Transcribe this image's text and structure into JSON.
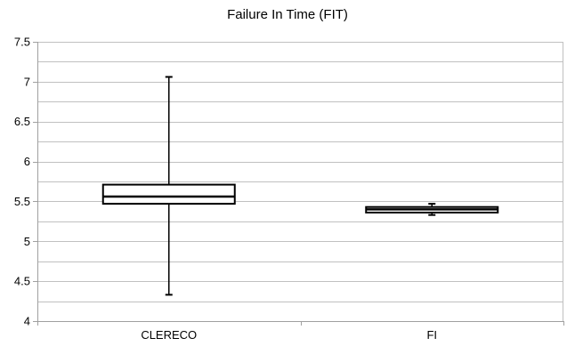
{
  "chart_data": {
    "type": "box",
    "title": "Failure In Time (FIT)",
    "xlabel": "",
    "ylabel": "",
    "ylim": [
      4,
      7.5
    ],
    "yticks": [
      "7.5",
      "7",
      "6.5",
      "6",
      "5.5",
      "5",
      "4.5",
      "4"
    ],
    "minor_grid_step": 0.25,
    "grid": true,
    "legend": "none",
    "categories": [
      "CLERECO",
      "FI"
    ],
    "boxes": [
      {
        "category": "CLERECO",
        "min": 4.33,
        "q1": 5.47,
        "median": 5.56,
        "q3": 5.71,
        "max": 7.06
      },
      {
        "category": "FI",
        "min": 5.33,
        "q1": 5.36,
        "median": 5.4,
        "q3": 5.43,
        "max": 5.47
      }
    ],
    "colors": {
      "grid": "#c0c0c0",
      "axis": "#a0a0a0",
      "box": "#000000",
      "fill": "#ffffff"
    }
  }
}
